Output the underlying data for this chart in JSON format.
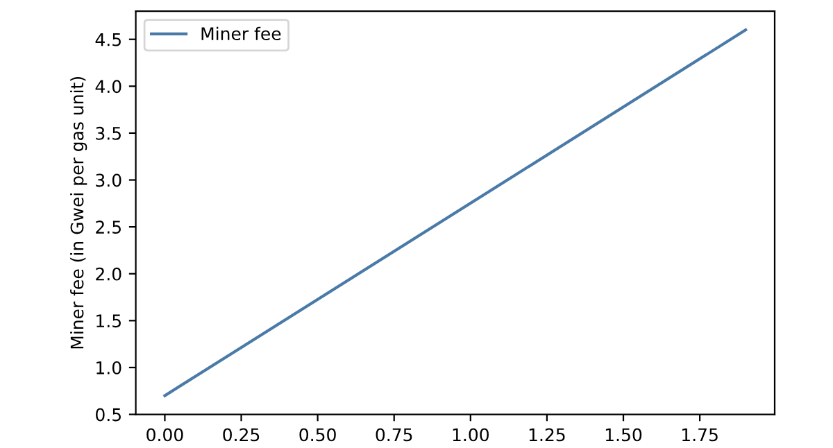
{
  "chart_data": {
    "type": "line",
    "ylabel": "Miner fee (in Gwei per gas unit)",
    "x": [
      0,
      1.9
    ],
    "series": [
      {
        "name": "Miner fee",
        "color": "#4a7aa8",
        "values": [
          0.7,
          4.6
        ]
      }
    ],
    "xlim": [
      -0.095,
      1.995
    ],
    "ylim": [
      0.5,
      4.8
    ],
    "xticks": [
      {
        "value": 0,
        "label": "0.00"
      },
      0.25,
      {
        "value": 0.5,
        "label": "0.50"
      },
      0.75,
      {
        "value": 1,
        "label": "1.00"
      },
      1.25,
      {
        "value": 1.5,
        "label": "1.50"
      },
      1.75
    ],
    "yticks": [
      0.5,
      {
        "value": 1,
        "label": "1.0"
      },
      1.5,
      {
        "value": 2,
        "label": "2.0"
      },
      2.5,
      {
        "value": 3,
        "label": "3.0"
      },
      3.5,
      {
        "value": 4,
        "label": "4.0"
      },
      4.5
    ],
    "legend": "top left",
    "grid": false,
    "line_style": "solid",
    "marker": "none"
  }
}
